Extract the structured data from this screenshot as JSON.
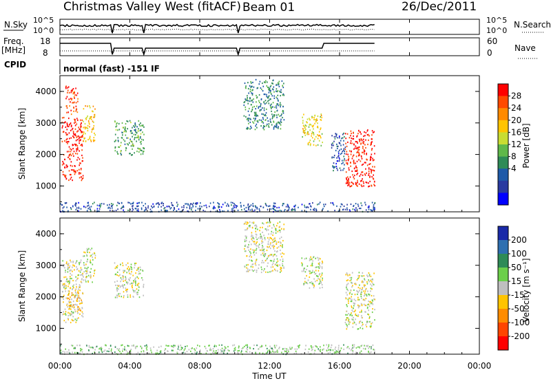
{
  "header": {
    "station": "Christmas Valley West (fitACF)",
    "beam": "Beam 01",
    "date": "26/Dec/2011"
  },
  "top_panels": {
    "nsky_label": "N.Sky",
    "nsky_ticks": [
      "10^5",
      "10^0"
    ],
    "nsky_right_ticks": [
      "10^5",
      "10^0"
    ],
    "nsearch_label": "N.Search",
    "freq_label_line1": "Freq.",
    "freq_label_line2": "[MHz]",
    "freq_ticks": [
      "18",
      "8"
    ],
    "nave_ticks": [
      "60",
      "0"
    ],
    "nave_label": "Nave",
    "cpid_label": "CPID",
    "cpid_value": "normal (fast) -151 IF"
  },
  "power_panel": {
    "ylabel": "Slant Range [km]",
    "yticks": [
      "4000",
      "3000",
      "2000",
      "1000"
    ],
    "colorbar_label": "Power [dB]",
    "colorbar_ticks": [
      "28",
      "24",
      "20",
      "16",
      "12",
      "8",
      "4"
    ],
    "colorbar_colors": [
      "#ff0000",
      "#ff4a00",
      "#ff8a00",
      "#ffc400",
      "#c8dc32",
      "#5fb84a",
      "#2e8b57",
      "#1e5aa8",
      "#2a3aa0",
      "#0000ff"
    ]
  },
  "velocity_panel": {
    "ylabel": "Slant Range [km]",
    "yticks": [
      "4000",
      "3000",
      "2000",
      "1000"
    ],
    "colorbar_label": "Velocity [m s⁻¹]",
    "colorbar_ticks": [
      "200",
      "100",
      "50",
      "15",
      "-15",
      "-50",
      "-100",
      "-200"
    ],
    "colorbar_colors": [
      "#1a2aa8",
      "#2e6fb0",
      "#2e8b57",
      "#6ccf4a",
      "#bfbfbf",
      "#ffc400",
      "#ff8c00",
      "#ff4500",
      "#ff0000"
    ]
  },
  "x_axis": {
    "ticks": [
      "00:00",
      "04:00",
      "08:00",
      "12:00",
      "16:00",
      "20:00",
      "00:00"
    ],
    "label": "Time UT"
  },
  "chart_data": {
    "type": "heatmap",
    "title": "Christmas Valley West (fitACF)",
    "xlabel": "Time UT",
    "ylabel": "Slant Range [km]",
    "xlim_hours": [
      0,
      24
    ],
    "ylim_km": [
      180,
      4500
    ],
    "panels": [
      {
        "name": "Power [dB]",
        "colorbar_range": [
          0,
          30
        ],
        "regions": [
          {
            "t0": 0.1,
            "t1": 1.3,
            "r0": 1200,
            "r1": 3200,
            "value": 28
          },
          {
            "t0": 0.3,
            "t1": 1.0,
            "r0": 3300,
            "r1": 4200,
            "value": 26
          },
          {
            "t0": 1.3,
            "t1": 2.0,
            "r0": 2400,
            "r1": 3600,
            "value": 20
          },
          {
            "t0": 3.1,
            "t1": 4.8,
            "r0": 2000,
            "r1": 3100,
            "value": 12
          },
          {
            "t0": 10.5,
            "t1": 12.8,
            "r0": 2800,
            "r1": 4400,
            "value": 10
          },
          {
            "t0": 13.8,
            "t1": 15.0,
            "r0": 2300,
            "r1": 3300,
            "value": 18
          },
          {
            "t0": 16.3,
            "t1": 18.0,
            "r0": 1000,
            "r1": 2800,
            "value": 28
          },
          {
            "t0": 15.5,
            "t1": 16.3,
            "r0": 1500,
            "r1": 2700,
            "value": 6
          },
          {
            "t0": 0.0,
            "t1": 18.0,
            "r0": 200,
            "r1": 500,
            "value": 6
          }
        ]
      },
      {
        "name": "Velocity [m s-1]",
        "colorbar_range": [
          -200,
          200
        ],
        "regions": [
          {
            "t0": 0.1,
            "t1": 1.3,
            "r0": 1200,
            "r1": 3200,
            "value": -10
          },
          {
            "t0": 0.4,
            "t1": 1.2,
            "r0": 1500,
            "r1": 2200,
            "value": -40
          },
          {
            "t0": 1.3,
            "t1": 2.0,
            "r0": 2400,
            "r1": 3600,
            "value": 0
          },
          {
            "t0": 3.1,
            "t1": 4.8,
            "r0": 2000,
            "r1": 3100,
            "value": 0
          },
          {
            "t0": 10.5,
            "t1": 12.8,
            "r0": 2800,
            "r1": 4400,
            "value": 0
          },
          {
            "t0": 13.8,
            "t1": 15.0,
            "r0": 2300,
            "r1": 3300,
            "value": 5
          },
          {
            "t0": 16.3,
            "t1": 18.0,
            "r0": 1000,
            "r1": 2800,
            "value": 0
          },
          {
            "t0": 0.0,
            "t1": 18.0,
            "r0": 200,
            "r1": 500,
            "value": 30
          }
        ]
      }
    ]
  }
}
